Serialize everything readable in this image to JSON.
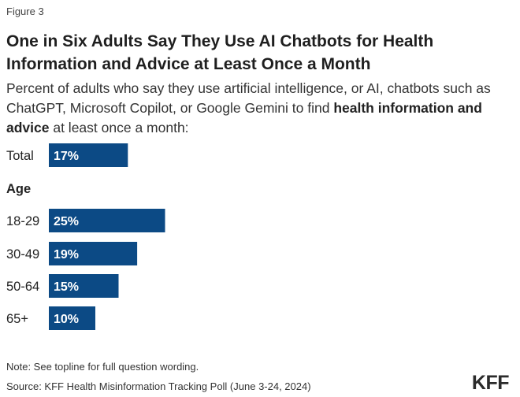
{
  "figure_label": "Figure 3",
  "title_line1": "One in Six Adults Say They Use AI Chatbots for Health",
  "title_line2": "Information and Advice at Least Once a Month",
  "subtitle_part1": "Percent of adults who say they use artificial intelligence, or AI, chatbots such as ChatGPT, Microsoft Copilot, or Google Gemini to find ",
  "subtitle_bold": "health information and advice",
  "subtitle_part2": " at least once a month:",
  "note": "Note: See topline for full question wording.",
  "source": "Source: KFF Health Misinformation Tracking Poll (June 3-24, 2024)",
  "logo": "KFF",
  "colors": {
    "bar": "#0c4a85",
    "bar_text": "#ffffff"
  },
  "chart_data": {
    "type": "bar",
    "orientation": "horizontal",
    "unit": "%",
    "group_header": "Age",
    "categories": [
      "Total",
      "18-29",
      "30-49",
      "50-64",
      "65+"
    ],
    "values": [
      17,
      25,
      19,
      15,
      10
    ],
    "data_labels": [
      "17%",
      "25%",
      "19%",
      "15%",
      "10%"
    ],
    "xlim": [
      0,
      100
    ],
    "grid": false,
    "legend": "none"
  }
}
